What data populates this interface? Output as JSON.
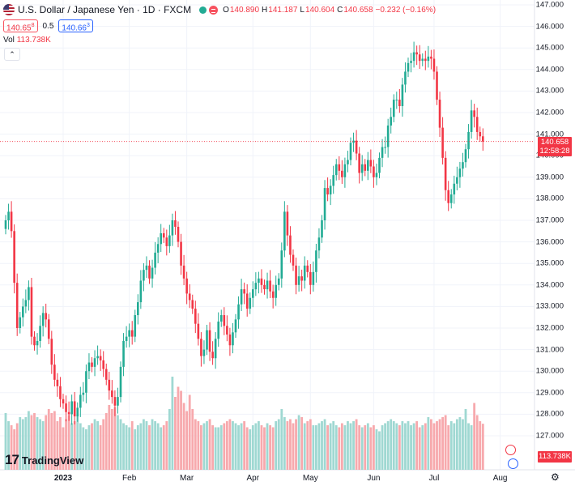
{
  "header": {
    "symbol_title": "U.S. Dollar / Japanese Yen · 1D · FXCM",
    "open_key": "O",
    "open": "140.890",
    "high_key": "H",
    "high": "141.187",
    "low_key": "L",
    "low": "140.604",
    "close_key": "C",
    "close": "140.658",
    "change": "−0.232 (−0.16%)",
    "sell_price": "140.65",
    "sell_sup": "8",
    "spread": "0.5",
    "buy_price": "140.66",
    "buy_sup": "3",
    "vol_key": "Vol",
    "vol_value": "113.738K"
  },
  "brand": {
    "logo": "17",
    "name": "TradingView"
  },
  "last_price": {
    "value": "140.658",
    "countdown": "12:58:28"
  },
  "last_volume": "113.738K",
  "colors": {
    "up": "#22ab94",
    "down": "#f23645",
    "vol_up": "#9fd8d2",
    "vol_down": "#f7a9ad"
  },
  "chart_data": {
    "type": "candlestick",
    "instrument": "U.S. Dollar / Japanese Yen",
    "interval": "1D",
    "exchange": "FXCM",
    "y_ticks": [
      "147.000",
      "146.000",
      "145.000",
      "144.000",
      "143.000",
      "142.000",
      "141.000",
      "140.000",
      "139.000",
      "138.000",
      "137.000",
      "136.000",
      "135.000",
      "134.000",
      "133.000",
      "132.000",
      "131.000",
      "130.000",
      "129.000",
      "128.000",
      "127.000"
    ],
    "x_ticks": [
      {
        "label": "2023",
        "bold": true,
        "t": 20
      },
      {
        "label": "Feb",
        "bold": false,
        "t": 43
      },
      {
        "label": "Mar",
        "bold": false,
        "t": 63
      },
      {
        "label": "Apr",
        "bold": false,
        "t": 86
      },
      {
        "label": "May",
        "bold": false,
        "t": 106
      },
      {
        "label": "Jun",
        "bold": false,
        "t": 128
      },
      {
        "label": "Jul",
        "bold": false,
        "t": 149
      },
      {
        "label": "Aug",
        "bold": false,
        "t": 172
      }
    ],
    "ylim": [
      126.5,
      147.2
    ],
    "closes": [
      137.0,
      137.4,
      136.5,
      134.1,
      132.0,
      132.5,
      133.0,
      133.3,
      133.9,
      131.6,
      131.2,
      131.4,
      132.1,
      132.7,
      132.4,
      131.5,
      130.3,
      129.6,
      129.3,
      128.7,
      128.5,
      128.1,
      128.0,
      128.6,
      127.9,
      128.3,
      128.9,
      129.0,
      130.0,
      130.4,
      130.2,
      130.6,
      130.7,
      130.5,
      130.1,
      129.6,
      129.1,
      128.8,
      128.4,
      128.8,
      130.2,
      131.4,
      131.6,
      131.9,
      131.6,
      132.6,
      133.2,
      134.2,
      134.7,
      134.9,
      134.3,
      134.8,
      135.5,
      135.9,
      136.4,
      136.2,
      135.8,
      136.3,
      137.0,
      136.7,
      136.0,
      134.9,
      134.3,
      133.6,
      133.3,
      132.9,
      132.2,
      131.5,
      130.7,
      131.0,
      131.9,
      130.9,
      130.6,
      131.5,
      132.3,
      132.6,
      132.1,
      131.7,
      131.2,
      131.8,
      132.4,
      133.1,
      133.8,
      133.6,
      132.9,
      133.4,
      133.8,
      134.1,
      134.3,
      134.0,
      133.8,
      134.2,
      133.7,
      133.4,
      134.0,
      134.3,
      135.6,
      137.4,
      136.3,
      135.4,
      134.9,
      134.0,
      134.4,
      134.2,
      134.9,
      134.6,
      134.0,
      134.6,
      135.6,
      136.2,
      137.0,
      138.5,
      138.2,
      138.6,
      139.1,
      139.6,
      139.3,
      139.0,
      139.6,
      139.8,
      140.6,
      140.7,
      140.1,
      139.2,
      139.6,
      139.3,
      139.8,
      139.5,
      139.0,
      139.2,
      139.9,
      140.4,
      140.4,
      141.4,
      141.8,
      142.6,
      142.6,
      142.3,
      143.3,
      143.9,
      144.3,
      144.4,
      144.8,
      144.7,
      144.4,
      144.5,
      144.4,
      144.6,
      144.5,
      143.9,
      142.6,
      141.3,
      139.9,
      138.4,
      137.8,
      138.2,
      138.7,
      139.0,
      139.4,
      139.7,
      140.3,
      141.1,
      142.1,
      141.8,
      141.1,
      140.9,
      140.658
    ],
    "volumes_k": [
      140,
      120,
      110,
      100,
      115,
      130,
      125,
      130,
      145,
      135,
      140,
      130,
      125,
      120,
      135,
      150,
      140,
      145,
      120,
      130,
      105,
      125,
      135,
      115,
      120,
      135,
      115,
      105,
      100,
      110,
      115,
      125,
      120,
      110,
      125,
      140,
      160,
      150,
      155,
      135,
      125,
      115,
      110,
      105,
      120,
      100,
      110,
      115,
      125,
      120,
      110,
      125,
      120,
      115,
      105,
      110,
      120,
      150,
      230,
      180,
      205,
      195,
      165,
      145,
      185,
      150,
      125,
      120,
      110,
      115,
      120,
      125,
      110,
      105,
      105,
      110,
      115,
      120,
      125,
      120,
      115,
      110,
      115,
      120,
      105,
      100,
      110,
      115,
      120,
      110,
      105,
      115,
      110,
      105,
      120,
      125,
      150,
      130,
      120,
      125,
      115,
      125,
      135,
      130,
      115,
      120,
      125,
      110,
      110,
      115,
      120,
      125,
      110,
      115,
      120,
      110,
      105,
      115,
      110,
      120,
      115,
      120,
      125,
      110,
      105,
      110,
      115,
      105,
      110,
      100,
      95,
      110,
      115,
      120,
      125,
      120,
      115,
      110,
      120,
      115,
      120,
      110,
      115,
      120,
      105,
      110,
      115,
      130,
      125,
      115,
      120,
      125,
      130,
      135,
      110,
      120,
      115,
      125,
      130,
      125,
      150,
      115,
      110,
      165,
      135,
      120,
      113.738
    ]
  }
}
